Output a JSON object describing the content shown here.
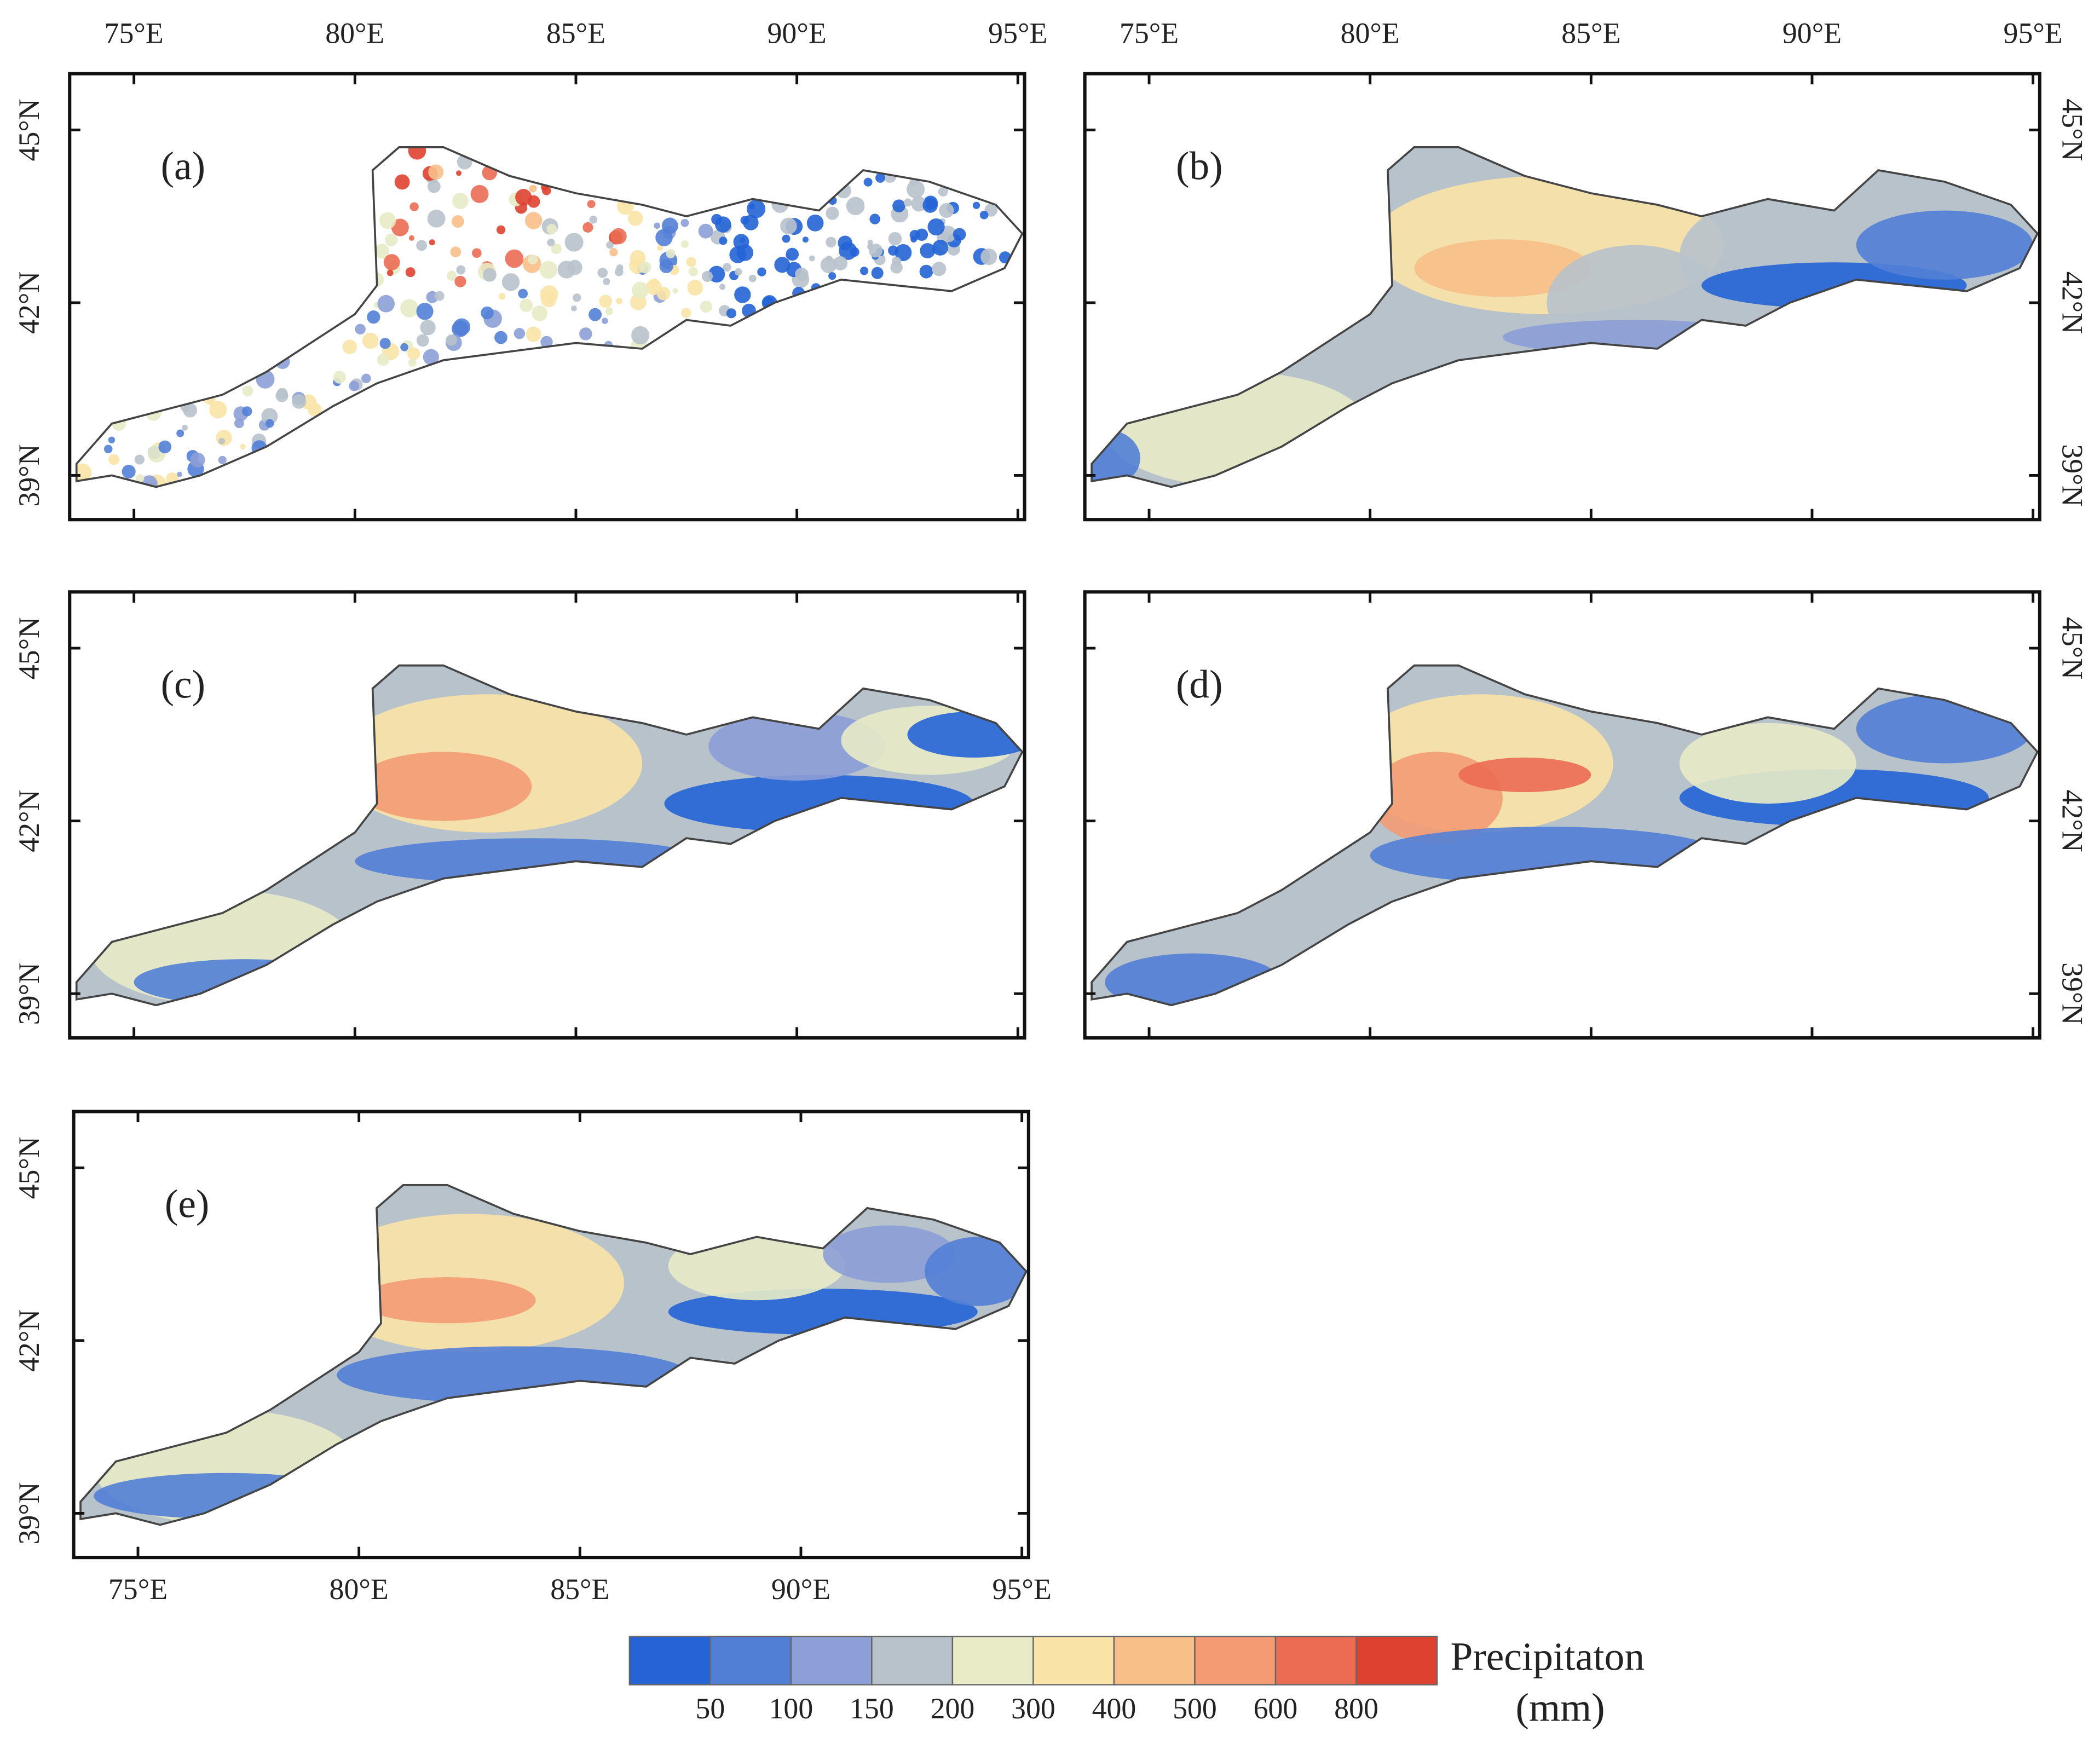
{
  "panels": [
    {
      "label": "(a)"
    },
    {
      "label": "(b)"
    },
    {
      "label": "(c)"
    },
    {
      "label": "(d)"
    },
    {
      "label": "(e)"
    }
  ],
  "lon_ticks": [
    {
      "value": 75,
      "label": "75°E"
    },
    {
      "value": 80,
      "label": "80°E"
    },
    {
      "value": 85,
      "label": "85°E"
    },
    {
      "value": 90,
      "label": "90°E"
    },
    {
      "value": 95,
      "label": "95°E"
    }
  ],
  "lat_ticks": [
    {
      "value": 39,
      "label": "39°N"
    },
    {
      "value": 42,
      "label": "42°N"
    },
    {
      "value": 45,
      "label": "45°N"
    }
  ],
  "colorbar": {
    "title": "Precipitaton",
    "unit": "(mm)",
    "colors": [
      "#2464d6",
      "#527fd6",
      "#8c9fd6",
      "#b8c2cb",
      "#e8ebc6",
      "#fae3a6",
      "#f8bf89",
      "#f49b74",
      "#eb6c53",
      "#df4130"
    ],
    "ticks": [
      "50",
      "100",
      "150",
      "200",
      "300",
      "400",
      "500",
      "600",
      "800"
    ]
  }
}
